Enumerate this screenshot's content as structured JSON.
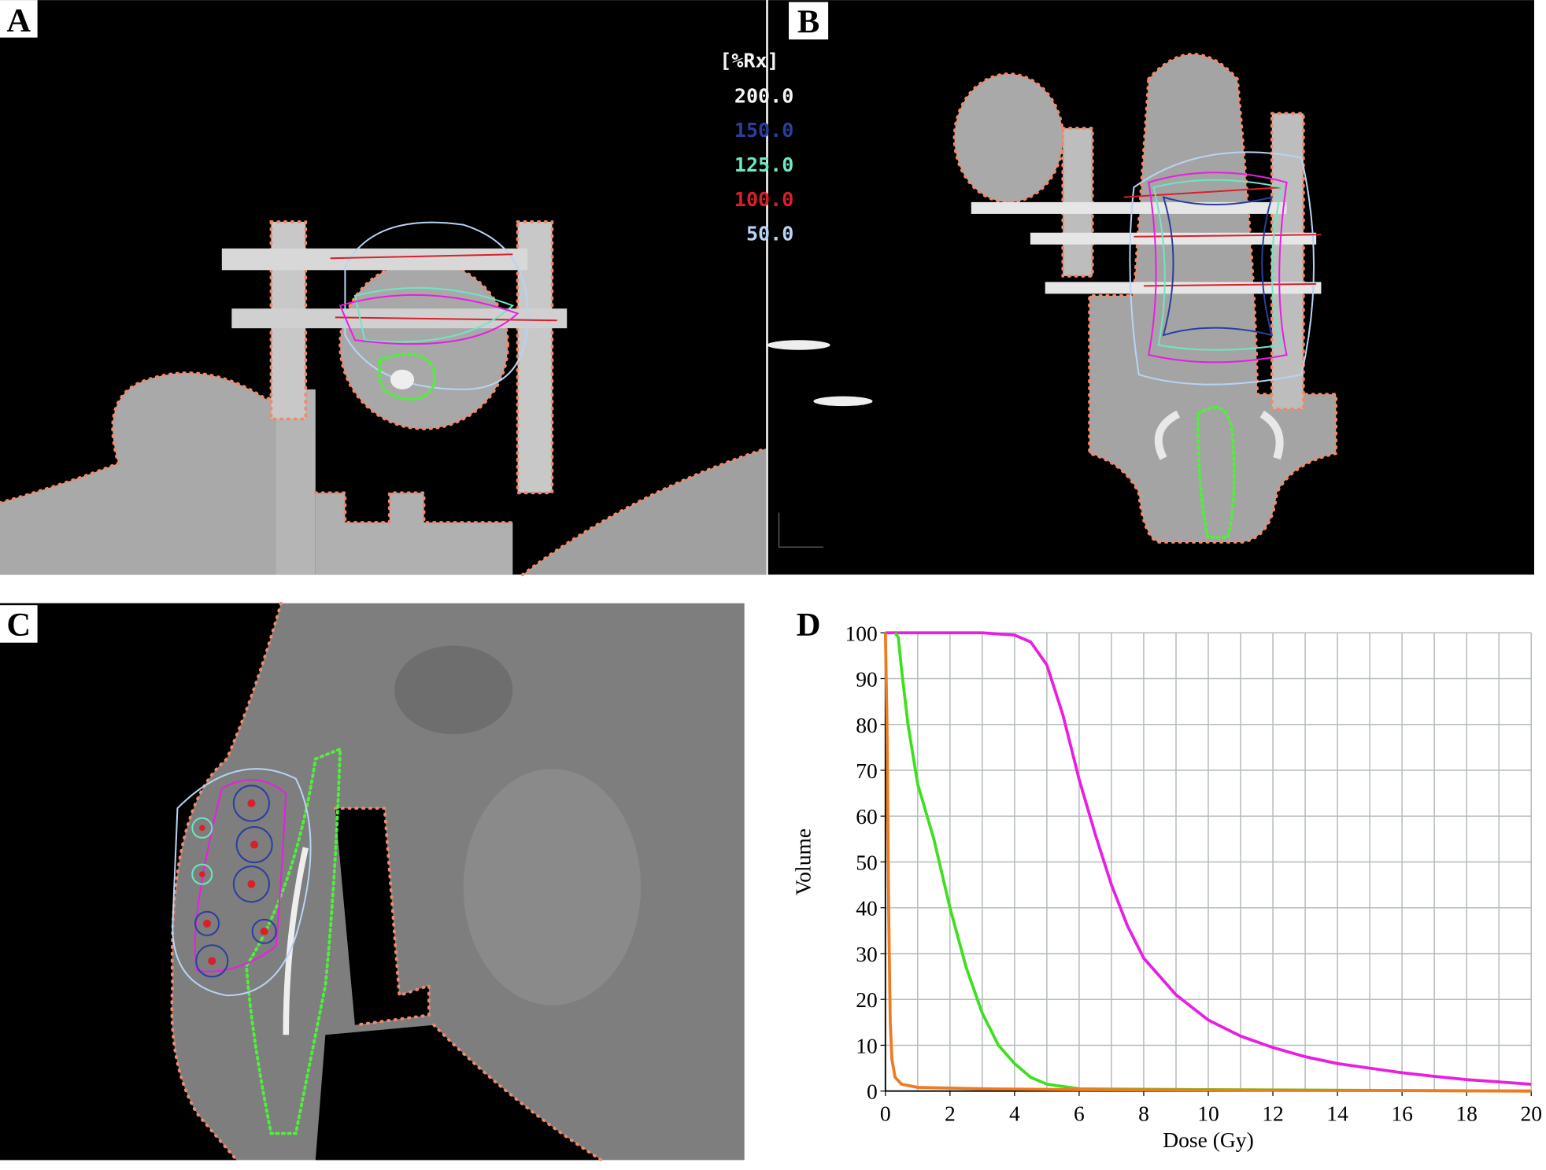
{
  "panels": {
    "a": "A",
    "b": "B",
    "c": "C",
    "d": "D"
  },
  "isodose_legend": {
    "title": "[%Rx]",
    "levels": [
      {
        "label": "200.0",
        "color": "#f4f4f4"
      },
      {
        "label": "150.0",
        "color": "#2a3f9e"
      },
      {
        "label": "125.0",
        "color": "#6fe6c4"
      },
      {
        "label": "100.0",
        "color": "#d8202a"
      },
      {
        "label": "50.0",
        "color": "#b8d4f4"
      }
    ]
  },
  "chart_data": {
    "type": "line",
    "xlabel": "Dose (Gy)",
    "ylabel": "Volume",
    "xlim": [
      0,
      20
    ],
    "ylim": [
      0,
      100
    ],
    "xticks": [
      0,
      2,
      4,
      6,
      8,
      10,
      12,
      14,
      16,
      18,
      20
    ],
    "yticks": [
      0,
      10,
      20,
      30,
      40,
      50,
      60,
      70,
      80,
      90,
      100
    ],
    "xgrid": [
      0,
      1,
      2,
      3,
      4,
      5,
      6,
      7,
      8,
      9,
      10,
      11,
      12,
      13,
      14,
      15,
      16,
      17,
      18,
      19,
      20
    ],
    "grid": true,
    "series": [
      {
        "color": "#e81ee0",
        "x": [
          0,
          2,
          3,
          4,
          4.5,
          5,
          5.5,
          6,
          6.5,
          7,
          7.5,
          8,
          9,
          10,
          11,
          12,
          13,
          14,
          15,
          16,
          17,
          18,
          19,
          20
        ],
        "values": [
          100,
          100,
          100,
          99.5,
          98,
          93,
          82,
          68,
          56,
          45,
          36,
          29,
          21,
          15.5,
          12,
          9.5,
          7.5,
          6,
          5,
          4,
          3.2,
          2.5,
          2,
          1.5
        ]
      },
      {
        "color": "#3ee01e",
        "x": [
          0.3,
          0.4,
          0.5,
          0.7,
          1,
          1.5,
          2,
          2.5,
          3,
          3.5,
          4,
          4.5,
          5,
          6,
          10,
          20
        ],
        "values": [
          100,
          99,
          92,
          80,
          67,
          55,
          40,
          27,
          17,
          10,
          6,
          3,
          1.5,
          0.5,
          0.3,
          0
        ]
      },
      {
        "color": "#f07a1e",
        "x": [
          0,
          0.05,
          0.1,
          0.15,
          0.2,
          0.3,
          0.5,
          1,
          3,
          6,
          20
        ],
        "values": [
          100,
          80,
          40,
          15,
          7,
          3,
          1.5,
          0.8,
          0.5,
          0.3,
          0
        ]
      }
    ]
  }
}
